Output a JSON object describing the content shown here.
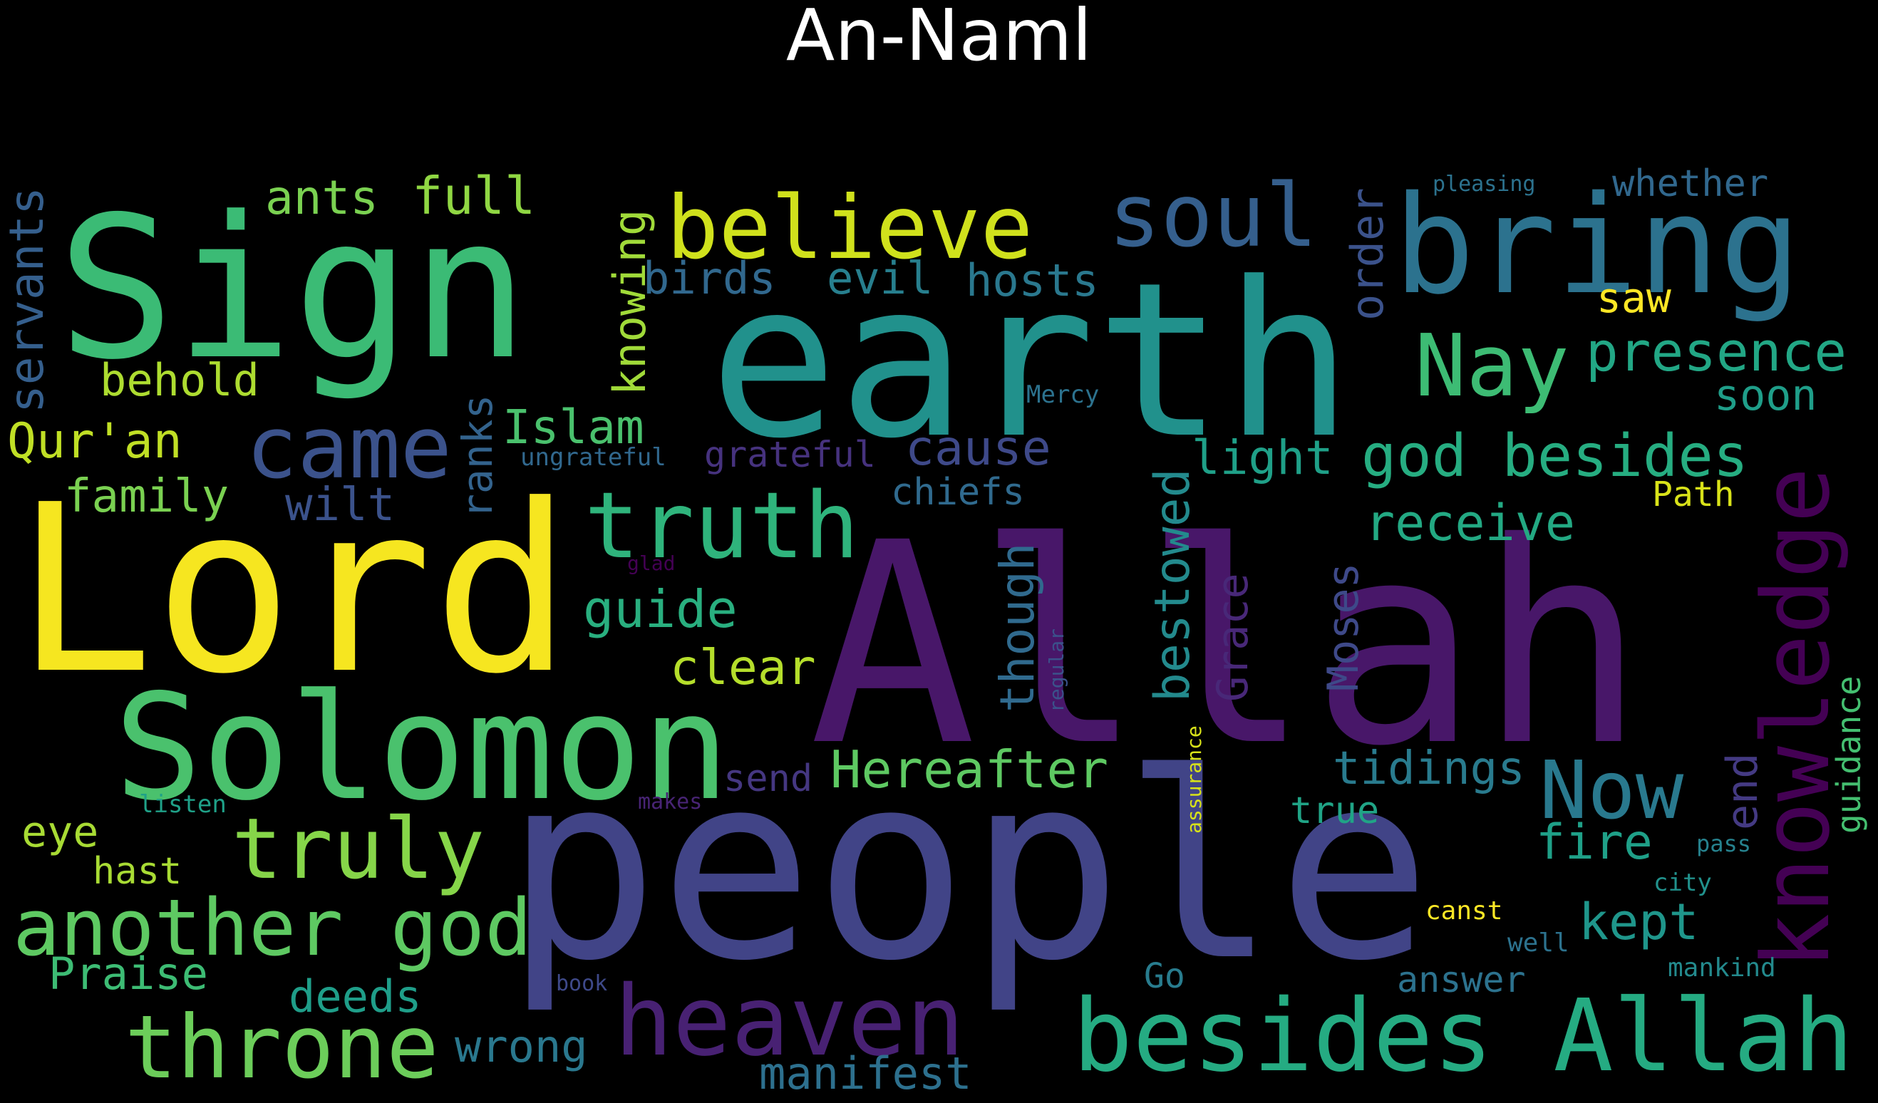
{
  "title": "An-Naml",
  "words": [
    {
      "text": "Allah",
      "color": "#481769"
    },
    {
      "text": "people",
      "color": "#414487"
    },
    {
      "text": "earth",
      "color": "#21918c"
    },
    {
      "text": "Lord",
      "color": "#f6e620"
    },
    {
      "text": "Sign",
      "color": "#3bbb75"
    },
    {
      "text": "bring",
      "color": "#2c728e"
    },
    {
      "text": "Solomon",
      "color": "#4ac16d"
    },
    {
      "text": "besides Allah",
      "color": "#25ab82"
    },
    {
      "text": "believe",
      "color": "#d0e11c"
    },
    {
      "text": "heaven",
      "color": "#482173"
    },
    {
      "text": "throne",
      "color": "#6ccd5a"
    },
    {
      "text": "truth",
      "color": "#2fb47c"
    },
    {
      "text": "knowledge",
      "color": "#440154"
    },
    {
      "text": "another god",
      "color": "#5ec962"
    },
    {
      "text": "truly",
      "color": "#86d549"
    },
    {
      "text": "came",
      "color": "#3b528b"
    },
    {
      "text": "soul",
      "color": "#355f8d"
    },
    {
      "text": "Nay",
      "color": "#3dbc74"
    },
    {
      "text": "Now",
      "color": "#29798e"
    },
    {
      "text": "god besides",
      "color": "#26ad81"
    },
    {
      "text": "presence",
      "color": "#22a785"
    },
    {
      "text": "Hereafter",
      "color": "#5ec962"
    },
    {
      "text": "full",
      "color": "#90d743"
    },
    {
      "text": "ants",
      "color": "#7ad151"
    },
    {
      "text": "servants",
      "color": "#355f8d"
    },
    {
      "text": "knowing",
      "color": "#a0da39"
    },
    {
      "text": "birds",
      "color": "#31688e"
    },
    {
      "text": "evil",
      "color": "#277f8e"
    },
    {
      "text": "hosts",
      "color": "#2a788e"
    },
    {
      "text": "order",
      "color": "#3b528b"
    },
    {
      "text": "pleasing",
      "color": "#2c728e"
    },
    {
      "text": "whether",
      "color": "#31688e"
    },
    {
      "text": "saw",
      "color": "#fde725"
    },
    {
      "text": "soon",
      "color": "#1f9e89"
    },
    {
      "text": "behold",
      "color": "#addc30"
    },
    {
      "text": "Qur'an",
      "color": "#c0df25"
    },
    {
      "text": "ranks",
      "color": "#33638d"
    },
    {
      "text": "Islam",
      "color": "#4ac16d"
    },
    {
      "text": "cause",
      "color": "#3e4989"
    },
    {
      "text": "Mercy",
      "color": "#2c728e"
    },
    {
      "text": "ungrateful",
      "color": "#31688e"
    },
    {
      "text": "grateful",
      "color": "#46327e"
    },
    {
      "text": "light",
      "color": "#1fa088"
    },
    {
      "text": "family",
      "color": "#7ad151"
    },
    {
      "text": "wilt",
      "color": "#3b528b"
    },
    {
      "text": "chiefs",
      "color": "#306a8e"
    },
    {
      "text": "bestowed",
      "color": "#238a8d"
    },
    {
      "text": "receive",
      "color": "#23a983"
    },
    {
      "text": "Path",
      "color": "#d8e219"
    },
    {
      "text": "glad",
      "color": "#440154"
    },
    {
      "text": "guide",
      "color": "#29af7f"
    },
    {
      "text": "though",
      "color": "#306a8e"
    },
    {
      "text": "Grace",
      "color": "#482878"
    },
    {
      "text": "Moses",
      "color": "#3e4989"
    },
    {
      "text": "clear",
      "color": "#b5de2b"
    },
    {
      "text": "regular",
      "color": "#3b528b"
    },
    {
      "text": "guidance",
      "color": "#44bf70"
    },
    {
      "text": "send",
      "color": "#453781"
    },
    {
      "text": "tidings",
      "color": "#297b8e"
    },
    {
      "text": "end",
      "color": "#443a83"
    },
    {
      "text": "assurance",
      "color": "#d8e219"
    },
    {
      "text": "listen",
      "color": "#1fa188"
    },
    {
      "text": "makes",
      "color": "#482475"
    },
    {
      "text": "eye",
      "color": "#a8db34"
    },
    {
      "text": "true",
      "color": "#20a486"
    },
    {
      "text": "fire",
      "color": "#1fa088"
    },
    {
      "text": "pass",
      "color": "#26828e"
    },
    {
      "text": "hast",
      "color": "#a8db34"
    },
    {
      "text": "city",
      "color": "#21918c"
    },
    {
      "text": "canst",
      "color": "#fde725"
    },
    {
      "text": "kept",
      "color": "#1f968b"
    },
    {
      "text": "well",
      "color": "#2c728e"
    },
    {
      "text": "Praise",
      "color": "#3dbc74"
    },
    {
      "text": "Go",
      "color": "#287c8e"
    },
    {
      "text": "mankind",
      "color": "#238a8d"
    },
    {
      "text": "deeds",
      "color": "#1f9e89"
    },
    {
      "text": "answer",
      "color": "#2c728e"
    },
    {
      "text": "book",
      "color": "#3e4989"
    },
    {
      "text": "wrong",
      "color": "#2a788e"
    },
    {
      "text": "manifest",
      "color": "#2d708e"
    }
  ]
}
